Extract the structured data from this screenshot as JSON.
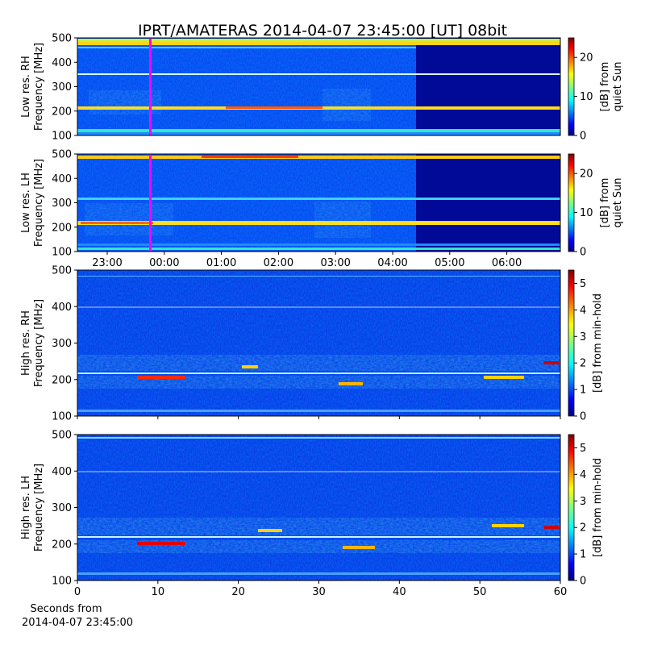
{
  "title": "IPRT/AMATERAS 2014-04-07 23:45:00 [UT]   08bit",
  "footer": {
    "line1": "Seconds from",
    "line2": "2014-04-07 23:45:00"
  },
  "colormap": [
    "#00007f",
    "#0000ff",
    "#007fff",
    "#00ffff",
    "#7fff7f",
    "#ffff00",
    "#ff7f00",
    "#ff0000",
    "#7f0000"
  ],
  "marker_color": "#ff00ff",
  "chart_data": [
    {
      "type": "heatmap",
      "panel": "low-res-rh",
      "ylabel_line1": "Low res. RH",
      "ylabel_line2": "Frequency [MHz]",
      "ylim": [
        100,
        500
      ],
      "yticks": [
        "100",
        "200",
        "300",
        "400",
        "500"
      ],
      "xticks": [],
      "colorbar": {
        "label_line1": "[dB] from",
        "label_line2": "quiet Sun",
        "range": [
          0,
          25
        ],
        "ticks": [
          "0",
          "10",
          "20"
        ]
      },
      "marker_time": "23:45",
      "instrument_off_after": "04:25"
    },
    {
      "type": "heatmap",
      "panel": "low-res-lh",
      "ylabel_line1": "Low res. LH",
      "ylabel_line2": "Frequency [MHz]",
      "ylim": [
        100,
        500
      ],
      "yticks": [
        "100",
        "200",
        "300",
        "400",
        "500"
      ],
      "xticks": [
        "23:00",
        "00:00",
        "01:00",
        "02:00",
        "03:00",
        "04:00",
        "05:00",
        "06:00"
      ],
      "colorbar": {
        "label_line1": "[dB] from",
        "label_line2": "quiet Sun",
        "range": [
          0,
          25
        ],
        "ticks": [
          "0",
          "10",
          "20"
        ]
      },
      "marker_time": "23:45",
      "instrument_off_after": "04:25"
    },
    {
      "type": "heatmap",
      "panel": "high-res-rh",
      "ylabel_line1": "High res. RH",
      "ylabel_line2": "Frequency [MHz]",
      "ylim": [
        100,
        500
      ],
      "xlim": [
        0,
        60
      ],
      "yticks": [
        "100",
        "200",
        "300",
        "400",
        "500"
      ],
      "xticks": [],
      "colorbar": {
        "label_line1": "[dB] from min-hold",
        "label_line2": "",
        "range": [
          0,
          5.5
        ],
        "ticks": [
          "0",
          "1",
          "2",
          "3",
          "4",
          "5"
        ]
      },
      "emission_bands_mhz": [
        [
          180,
          210
        ],
        [
          225,
          260
        ]
      ]
    },
    {
      "type": "heatmap",
      "panel": "high-res-lh",
      "ylabel_line1": "High res. LH",
      "ylabel_line2": "Frequency [MHz]",
      "ylim": [
        100,
        500
      ],
      "xlim": [
        0,
        60
      ],
      "yticks": [
        "100",
        "200",
        "300",
        "400",
        "500"
      ],
      "xticks": [
        "0",
        "10",
        "20",
        "30",
        "40",
        "50",
        "60"
      ],
      "colorbar": {
        "label_line1": "[dB] from min-hold",
        "label_line2": "",
        "range": [
          0,
          5.5
        ],
        "ticks": [
          "0",
          "1",
          "2",
          "3",
          "4",
          "5"
        ]
      },
      "emission_bands_mhz": [
        [
          180,
          210
        ],
        [
          225,
          260
        ]
      ]
    }
  ]
}
